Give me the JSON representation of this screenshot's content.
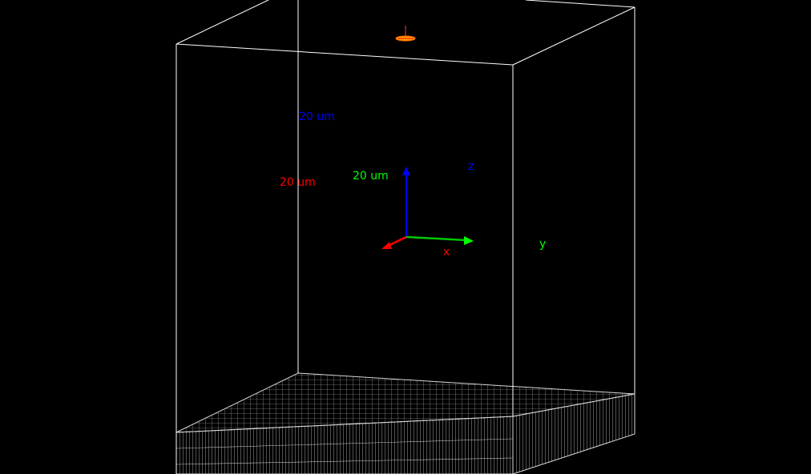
{
  "scene": {
    "background": "#000000",
    "box_color": "#ffffff",
    "grid_color": "#cfcfcf",
    "source_marker_color": "#ffa500"
  },
  "axes": {
    "x": {
      "label": "x",
      "scale": "20 um",
      "color": "#ff0000"
    },
    "y": {
      "label": "y",
      "scale": "20 um",
      "color": "#00ff00"
    },
    "z": {
      "label": "z",
      "scale": "20 um",
      "color": "#0000ff"
    }
  }
}
